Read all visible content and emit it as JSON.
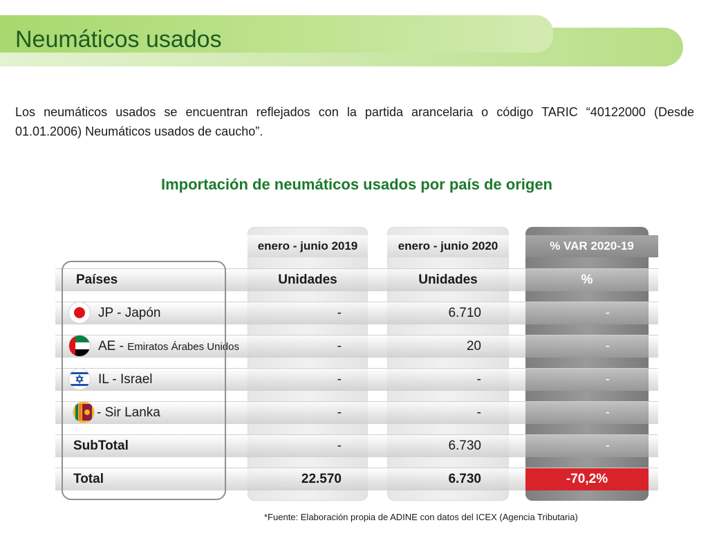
{
  "header": {
    "title": "Neumáticos usados"
  },
  "intro": "Los neumáticos usados se encuentran reflejados con la partida arancelaria o código TARIC “40122000 (Desde 01.01.2006) Neumáticos usados de caucho”.",
  "chart_data": {
    "type": "table",
    "title": "Importación de neumáticos usados por país de origen",
    "period_headers": [
      "enero - junio 2019",
      "enero - junio 2020",
      "% VAR 2020-19"
    ],
    "column_headers": [
      "Países",
      "Unidades",
      "Unidades",
      "%"
    ],
    "rows": [
      {
        "country": "JP - Japón",
        "prefix": "JP -",
        "name": "Japón",
        "flag": "japan-flag-icon",
        "v2019": "-",
        "v2020": "6.710",
        "var": "-"
      },
      {
        "country": "AE - Emiratos Árabes Unidos",
        "prefix": "AE -",
        "name": "Emiratos Árabes Unidos",
        "flag": "uae-flag-icon",
        "v2019": "-",
        "v2020": "20",
        "var": "-"
      },
      {
        "country": "IL - Israel",
        "prefix": "IL -",
        "name": "Israel",
        "flag": "israel-flag-icon",
        "v2019": "-",
        "v2020": "-",
        "var": "-"
      },
      {
        "country": "- Sir Lanka",
        "prefix": "-",
        "name": "Sir Lanka",
        "flag": "sri-lanka-flag-icon",
        "v2019": "-",
        "v2020": "-",
        "var": "-"
      }
    ],
    "subtotal": {
      "label": "SubTotal",
      "v2019": "-",
      "v2020": "6.730",
      "var": "-"
    },
    "total": {
      "label": "Total",
      "v2019": "22.570",
      "v2020": "6.730",
      "var": "-70,2%"
    }
  },
  "footnote": "*Fuente: Elaboración propia de ADINE con datos del ICEX (Agencia Tributaria)",
  "colors": {
    "title_green": "#1d5c23",
    "chart_title_green": "#1c7a2c",
    "negative_red": "#d9232b",
    "banner_green": "#a8d86e"
  }
}
